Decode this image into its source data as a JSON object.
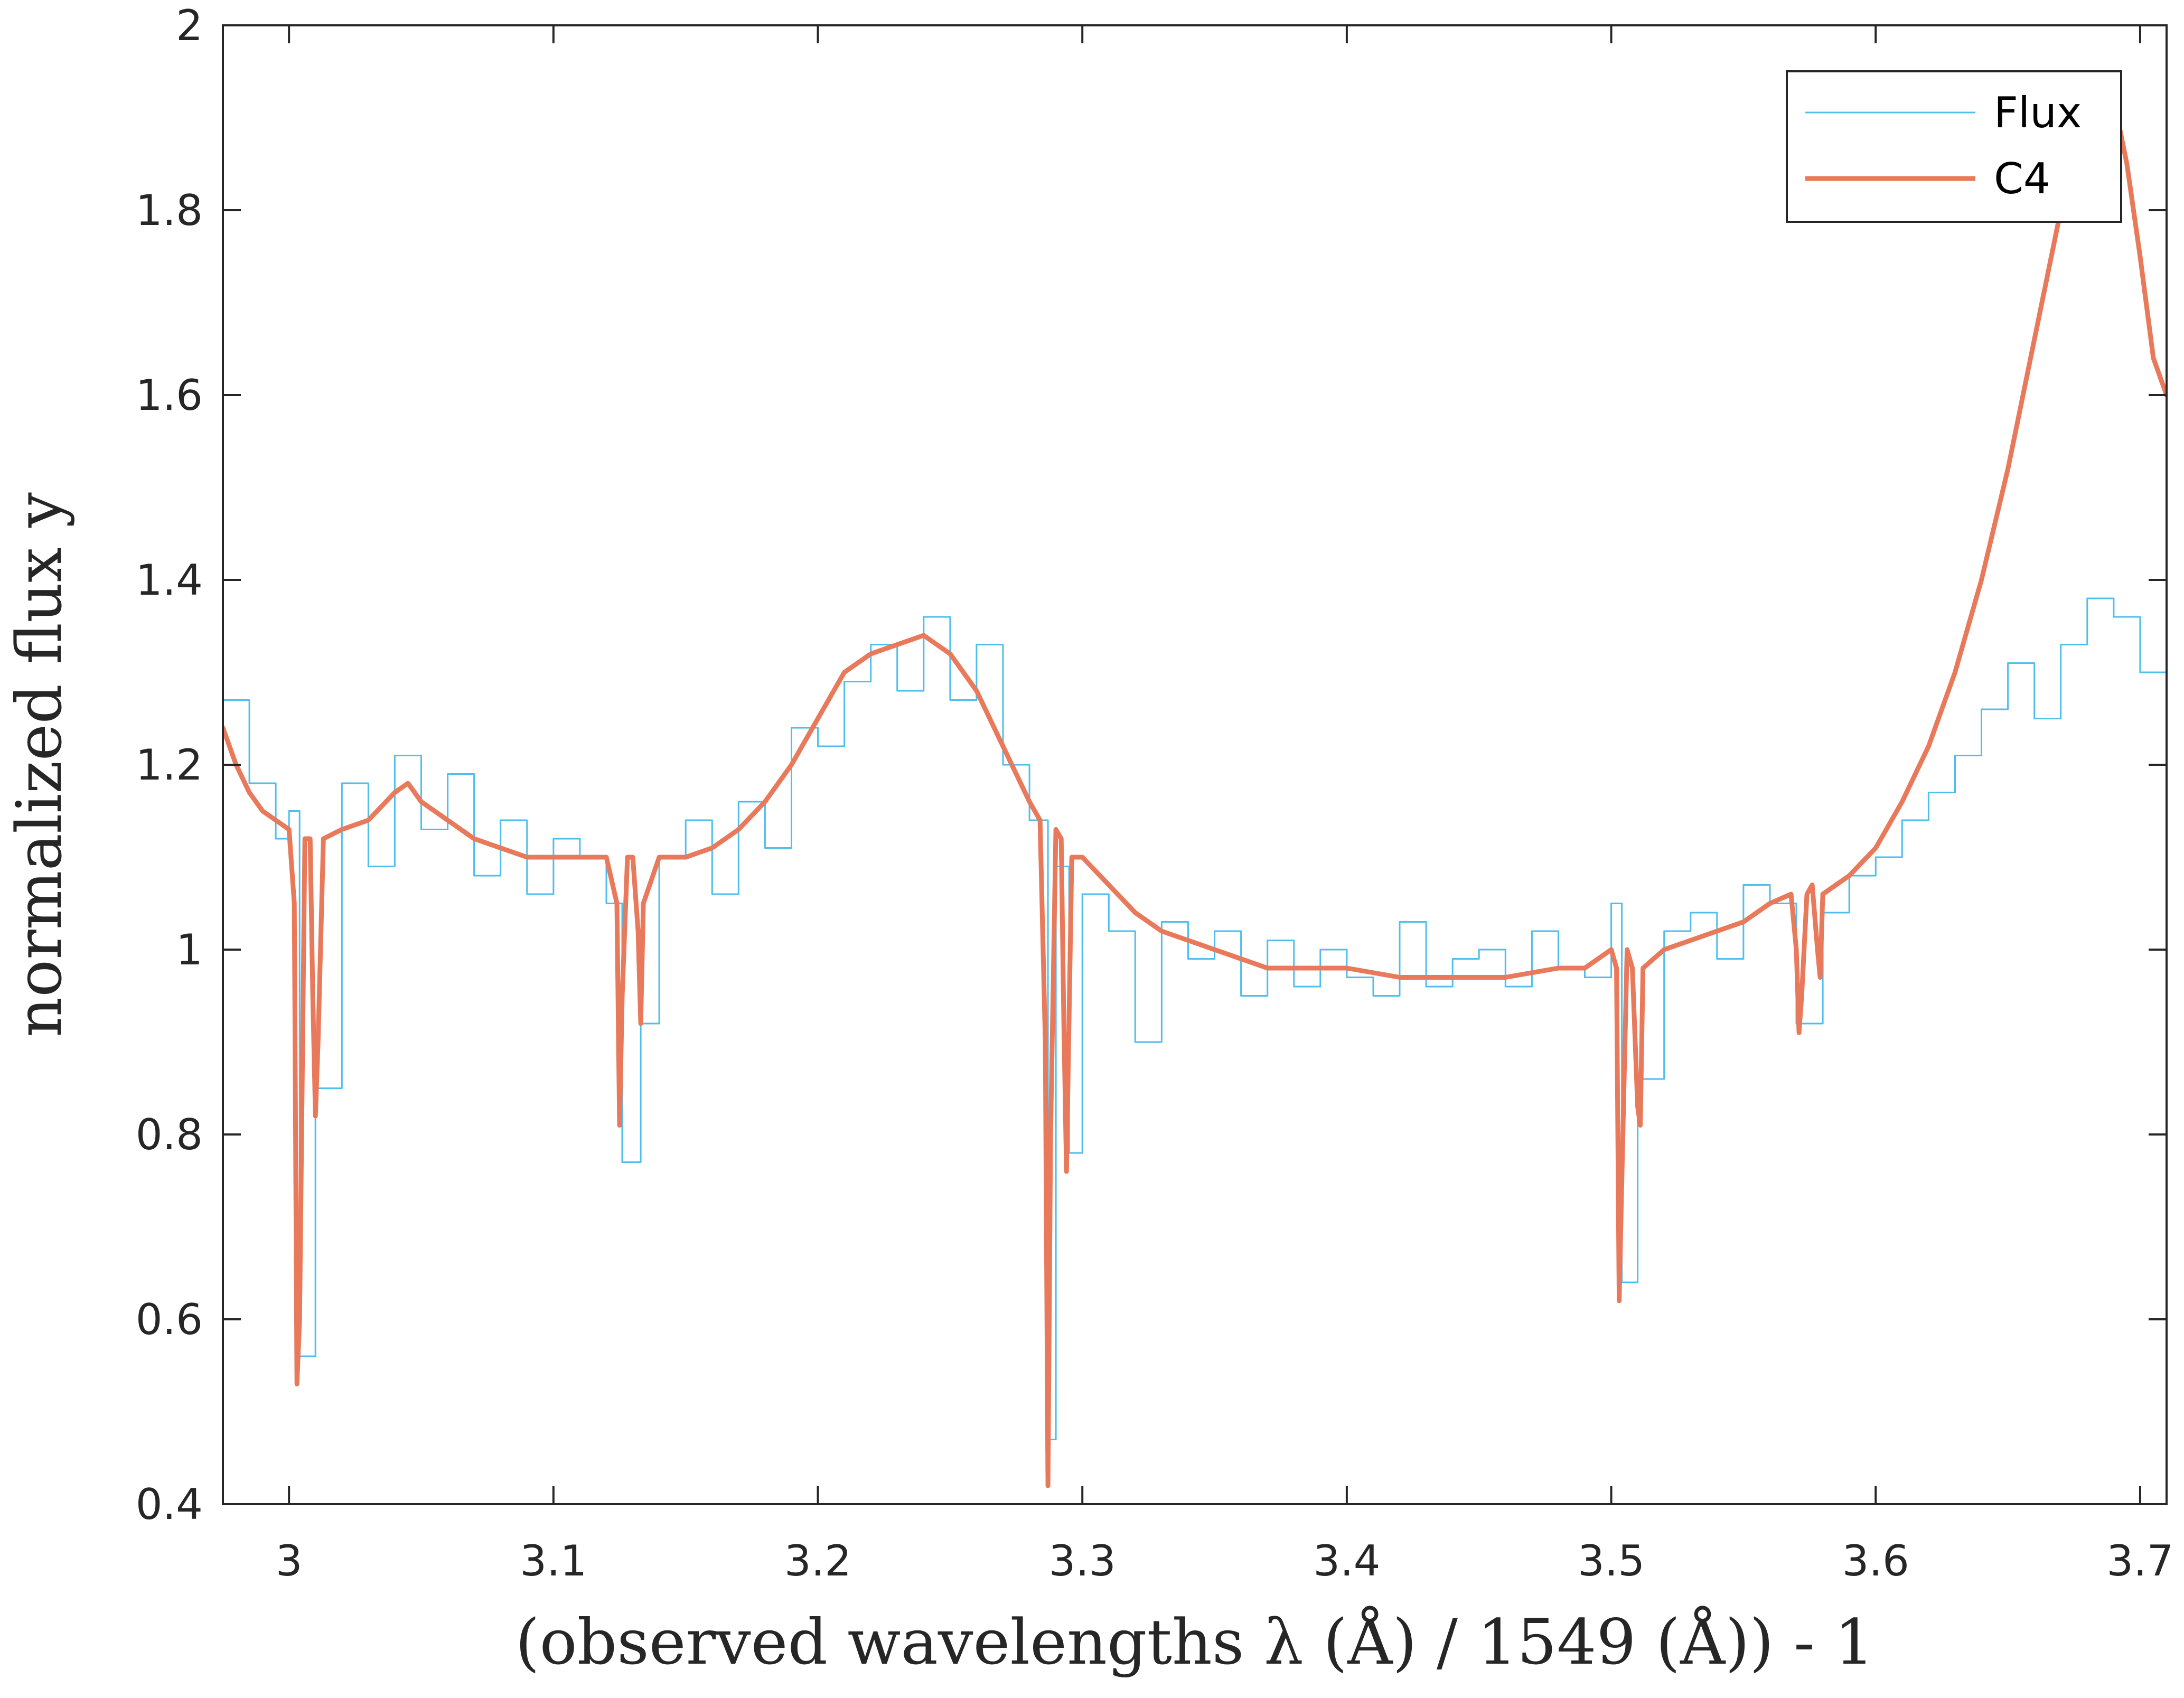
{
  "colors": {
    "flux": "#4DBEEE",
    "c4": "#E8795A",
    "axis": "#262626",
    "background": "#ffffff"
  },
  "chart_data": {
    "type": "line",
    "title": "",
    "xlabel": "(observed wavelengths λ (Å) / 1549 (Å)) - 1",
    "ylabel": "normalized flux y",
    "xlim": [
      2.975,
      3.71
    ],
    "ylim": [
      0.4,
      2.0
    ],
    "xticks": [
      3.0,
      3.1,
      3.2,
      3.3,
      3.4,
      3.5,
      3.6,
      3.7
    ],
    "xtick_labels": [
      "3",
      "3.1",
      "3.2",
      "3.3",
      "3.4",
      "3.5",
      "3.6",
      "3.7"
    ],
    "yticks": [
      0.4,
      0.6,
      0.8,
      1.0,
      1.2,
      1.4,
      1.6,
      1.8,
      2.0
    ],
    "ytick_labels": [
      "0.4",
      "0.6",
      "0.8",
      "1",
      "1.2",
      "1.4",
      "1.6",
      "1.8",
      "2"
    ],
    "grid": false,
    "legend_position": "top-right",
    "series": [
      {
        "name": "Flux",
        "style": "stairs",
        "x": [
          2.975,
          2.985,
          2.995,
          3.0,
          3.004,
          3.01,
          3.02,
          3.03,
          3.04,
          3.05,
          3.06,
          3.07,
          3.08,
          3.09,
          3.1,
          3.11,
          3.12,
          3.126,
          3.133,
          3.14,
          3.15,
          3.16,
          3.17,
          3.18,
          3.19,
          3.2,
          3.21,
          3.22,
          3.23,
          3.24,
          3.25,
          3.26,
          3.27,
          3.28,
          3.287,
          3.29,
          3.295,
          3.3,
          3.31,
          3.32,
          3.33,
          3.34,
          3.35,
          3.36,
          3.37,
          3.38,
          3.39,
          3.4,
          3.41,
          3.42,
          3.43,
          3.44,
          3.45,
          3.46,
          3.47,
          3.48,
          3.49,
          3.5,
          3.504,
          3.51,
          3.52,
          3.53,
          3.54,
          3.55,
          3.56,
          3.57,
          3.58,
          3.59,
          3.6,
          3.61,
          3.62,
          3.63,
          3.64,
          3.65,
          3.66,
          3.67,
          3.68,
          3.69,
          3.7,
          3.71
        ],
        "y": [
          1.27,
          1.18,
          1.12,
          1.15,
          0.56,
          0.85,
          1.18,
          1.09,
          1.21,
          1.13,
          1.19,
          1.08,
          1.14,
          1.06,
          1.12,
          1.1,
          1.05,
          0.77,
          0.92,
          1.1,
          1.14,
          1.06,
          1.16,
          1.11,
          1.24,
          1.22,
          1.29,
          1.33,
          1.28,
          1.36,
          1.27,
          1.33,
          1.2,
          1.14,
          0.47,
          1.09,
          0.78,
          1.06,
          1.02,
          0.9,
          1.03,
          0.99,
          1.02,
          0.95,
          1.01,
          0.96,
          1.0,
          0.97,
          0.95,
          1.03,
          0.96,
          0.99,
          1.0,
          0.96,
          1.02,
          0.98,
          0.97,
          1.05,
          0.64,
          0.86,
          1.02,
          1.04,
          0.99,
          1.07,
          1.05,
          0.92,
          1.04,
          1.08,
          1.1,
          1.14,
          1.17,
          1.21,
          1.26,
          1.31,
          1.25,
          1.33,
          1.38,
          1.36,
          1.3,
          1.27
        ]
      },
      {
        "name": "C4",
        "style": "line",
        "x": [
          2.975,
          2.98,
          2.985,
          2.99,
          2.995,
          3.0,
          3.002,
          3.003,
          3.004,
          3.006,
          3.008,
          3.009,
          3.01,
          3.011,
          3.013,
          3.02,
          3.03,
          3.04,
          3.045,
          3.05,
          3.06,
          3.07,
          3.08,
          3.09,
          3.1,
          3.11,
          3.12,
          3.124,
          3.125,
          3.126,
          3.128,
          3.13,
          3.132,
          3.133,
          3.134,
          3.14,
          3.15,
          3.16,
          3.17,
          3.18,
          3.19,
          3.2,
          3.21,
          3.22,
          3.23,
          3.24,
          3.245,
          3.25,
          3.26,
          3.27,
          3.28,
          3.284,
          3.286,
          3.287,
          3.288,
          3.29,
          3.292,
          3.293,
          3.294,
          3.296,
          3.3,
          3.31,
          3.32,
          3.33,
          3.34,
          3.35,
          3.36,
          3.37,
          3.38,
          3.39,
          3.4,
          3.42,
          3.44,
          3.46,
          3.48,
          3.49,
          3.5,
          3.502,
          3.503,
          3.504,
          3.506,
          3.508,
          3.51,
          3.511,
          3.512,
          3.52,
          3.53,
          3.54,
          3.55,
          3.56,
          3.568,
          3.57,
          3.571,
          3.572,
          3.574,
          3.576,
          3.578,
          3.579,
          3.58,
          3.59,
          3.6,
          3.61,
          3.62,
          3.63,
          3.64,
          3.65,
          3.66,
          3.67,
          3.68,
          3.685,
          3.69,
          3.695,
          3.7,
          3.705,
          3.71
        ],
        "y": [
          1.24,
          1.2,
          1.17,
          1.15,
          1.14,
          1.13,
          1.05,
          0.53,
          0.6,
          1.12,
          1.12,
          0.95,
          0.82,
          0.9,
          1.12,
          1.13,
          1.14,
          1.17,
          1.18,
          1.16,
          1.14,
          1.12,
          1.11,
          1.1,
          1.1,
          1.1,
          1.1,
          1.05,
          0.81,
          0.95,
          1.1,
          1.1,
          1.02,
          0.92,
          1.05,
          1.1,
          1.1,
          1.11,
          1.13,
          1.16,
          1.2,
          1.25,
          1.3,
          1.32,
          1.33,
          1.34,
          1.33,
          1.32,
          1.28,
          1.22,
          1.16,
          1.14,
          0.9,
          0.42,
          0.8,
          1.13,
          1.12,
          0.92,
          0.76,
          1.1,
          1.1,
          1.07,
          1.04,
          1.02,
          1.01,
          1.0,
          0.99,
          0.98,
          0.98,
          0.98,
          0.98,
          0.97,
          0.97,
          0.97,
          0.98,
          0.98,
          1.0,
          0.98,
          0.62,
          0.75,
          1.0,
          0.98,
          0.83,
          0.81,
          0.98,
          1.0,
          1.01,
          1.02,
          1.03,
          1.05,
          1.06,
          1.0,
          0.91,
          0.95,
          1.06,
          1.07,
          1.0,
          0.97,
          1.06,
          1.08,
          1.11,
          1.16,
          1.22,
          1.3,
          1.4,
          1.52,
          1.66,
          1.8,
          1.9,
          1.93,
          1.92,
          1.85,
          1.75,
          1.64,
          1.6
        ]
      }
    ]
  }
}
